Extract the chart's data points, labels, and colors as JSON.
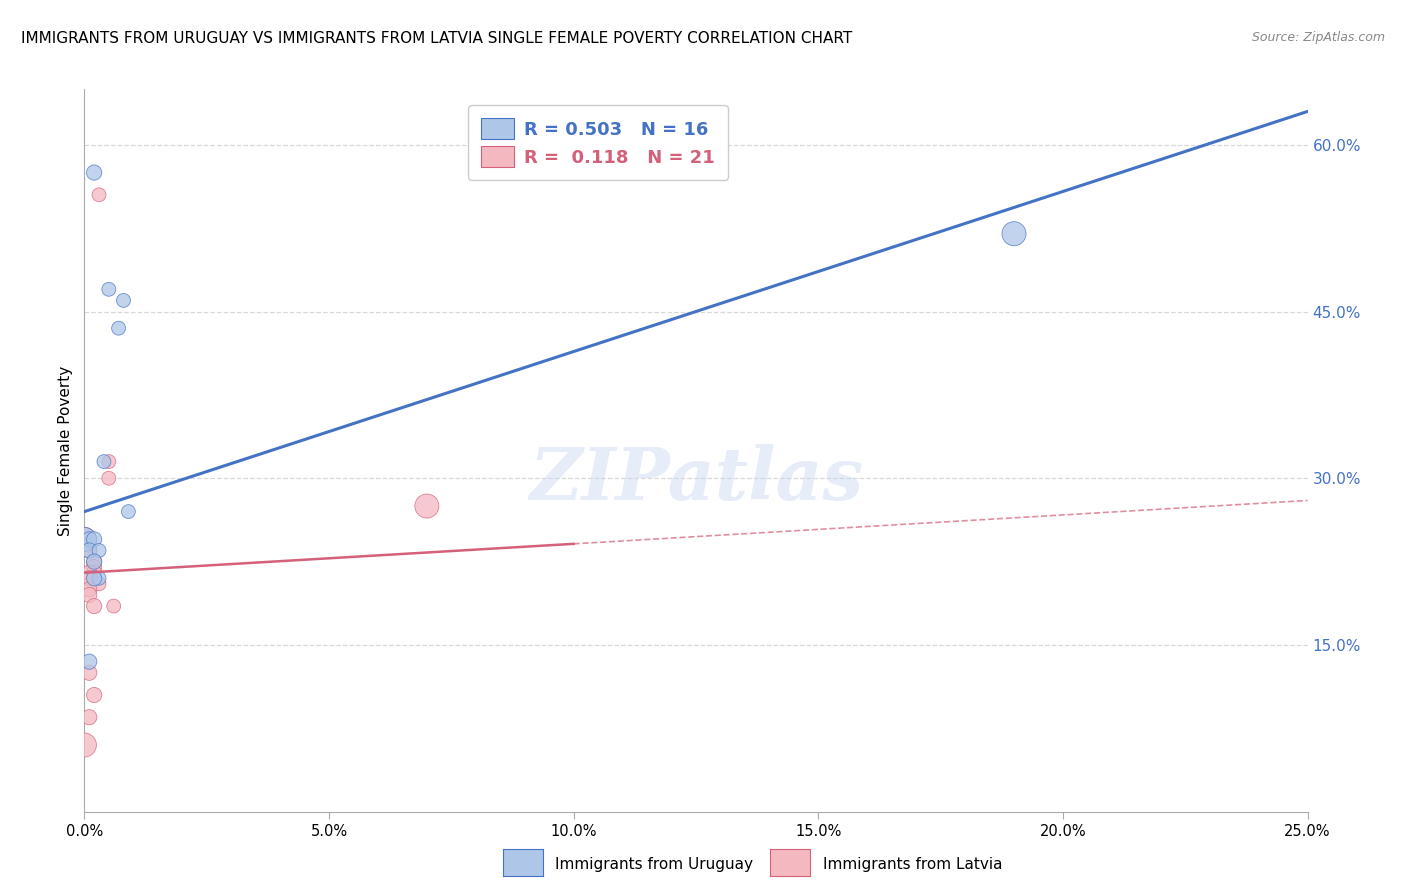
{
  "title": "IMMIGRANTS FROM URUGUAY VS IMMIGRANTS FROM LATVIA SINGLE FEMALE POVERTY CORRELATION CHART",
  "source": "Source: ZipAtlas.com",
  "ylabel": "Single Female Poverty",
  "xlim": [
    0.0,
    0.25
  ],
  "ylim": [
    0.0,
    0.65
  ],
  "xticks": [
    0.0,
    0.05,
    0.1,
    0.15,
    0.2,
    0.25
  ],
  "ytick_vals": [
    0.15,
    0.3,
    0.45,
    0.6
  ],
  "ytick_labels": [
    "15.0%",
    "30.0%",
    "45.0%",
    "60.0%"
  ],
  "xtick_labels": [
    "0.0%",
    "5.0%",
    "10.0%",
    "15.0%",
    "20.0%",
    "25.0%"
  ],
  "legend_entries": [
    {
      "label": "R = 0.503   N = 16",
      "color": "#aec6e8"
    },
    {
      "label": "R =  0.118   N = 21",
      "color": "#f4b8c1"
    }
  ],
  "legend_labels_bottom": [
    "Immigrants from Uruguay",
    "Immigrants from Latvia"
  ],
  "uruguay_color": "#aec6e8",
  "latvia_color": "#f4b8c1",
  "uruguay_line_color": "#4472c4",
  "latvia_line_color": "#d4607a",
  "uruguay_scatter": [
    [
      0.002,
      0.575
    ],
    [
      0.005,
      0.47
    ],
    [
      0.007,
      0.435
    ],
    [
      0.008,
      0.46
    ],
    [
      0.004,
      0.315
    ],
    [
      0.009,
      0.27
    ],
    [
      0.0,
      0.245
    ],
    [
      0.001,
      0.245
    ],
    [
      0.002,
      0.245
    ],
    [
      0.001,
      0.235
    ],
    [
      0.003,
      0.235
    ],
    [
      0.002,
      0.225
    ],
    [
      0.003,
      0.21
    ],
    [
      0.002,
      0.21
    ],
    [
      0.001,
      0.135
    ],
    [
      0.19,
      0.52
    ]
  ],
  "latvia_scatter": [
    [
      0.003,
      0.555
    ],
    [
      0.005,
      0.315
    ],
    [
      0.005,
      0.3
    ],
    [
      0.0,
      0.245
    ],
    [
      0.001,
      0.24
    ],
    [
      0.001,
      0.235
    ],
    [
      0.002,
      0.225
    ],
    [
      0.002,
      0.22
    ],
    [
      0.002,
      0.215
    ],
    [
      0.001,
      0.215
    ],
    [
      0.001,
      0.21
    ],
    [
      0.003,
      0.205
    ],
    [
      0.001,
      0.2
    ],
    [
      0.001,
      0.195
    ],
    [
      0.002,
      0.185
    ],
    [
      0.006,
      0.185
    ],
    [
      0.07,
      0.275
    ],
    [
      0.001,
      0.125
    ],
    [
      0.002,
      0.105
    ],
    [
      0.001,
      0.085
    ],
    [
      0.0,
      0.06
    ]
  ],
  "watermark": "ZIPatlas",
  "background_color": "#ffffff",
  "grid_color": "#d8d8d8"
}
